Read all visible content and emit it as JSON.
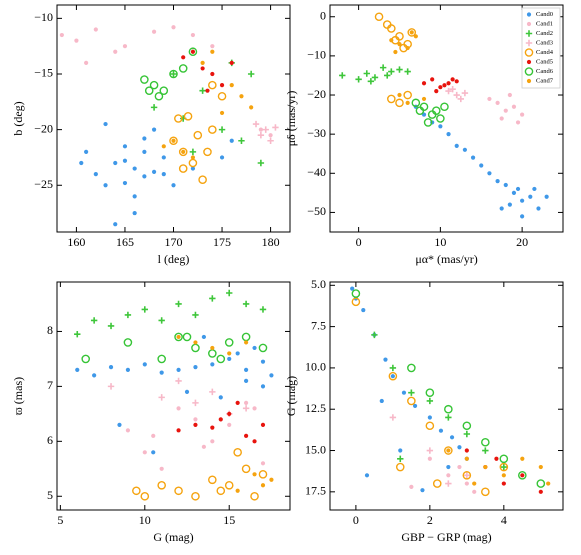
{
  "chart_data": [
    {
      "type": "scatter",
      "xlabel": "l (deg)",
      "ylabel": "b (deg)",
      "xlim": [
        158,
        182
      ],
      "xticks": [
        160,
        165,
        170,
        175,
        180
      ],
      "ylim": [
        -29.2,
        -8.8
      ],
      "yticks": [
        {
          "value": -25,
          "label": "−25"
        },
        {
          "value": -20,
          "label": "−20"
        },
        {
          "value": -15,
          "label": "−15"
        },
        {
          "value": -10,
          "label": "−10"
        }
      ],
      "series": [
        {
          "color": "#3f98e8",
          "marker": "dot",
          "x": [
            166,
            165,
            167,
            164,
            168,
            163,
            169,
            166,
            165,
            167,
            162,
            170,
            161,
            172,
            166,
            164,
            168,
            175,
            176,
            163,
            160.5,
            167,
            165,
            169
          ],
          "y": [
            -23.5,
            -22.8,
            -24.2,
            -23,
            -23.8,
            -25,
            -22.5,
            -26,
            -21.5,
            -20.8,
            -24,
            -25,
            -22,
            -23.5,
            -27.5,
            -28.5,
            -20,
            -22.5,
            -21,
            -19.5,
            -23,
            -22,
            -24.8,
            -24
          ]
        },
        {
          "color": "#f7b8c8",
          "marker": "dot",
          "x": [
            158.5,
            160,
            162,
            165,
            168,
            170,
            172,
            161,
            164,
            174,
            179,
            180
          ],
          "y": [
            -11.5,
            -12,
            -11,
            -12.5,
            -11.2,
            -10.8,
            -11.5,
            -14,
            -13,
            -12.5,
            -20,
            -20.5
          ]
        },
        {
          "color": "#3ec63a",
          "marker": "plus",
          "x": [
            168,
            170,
            173,
            176,
            178,
            175,
            172,
            171,
            177,
            179
          ],
          "y": [
            -18,
            -15,
            -16.5,
            -14,
            -15,
            -20,
            -22,
            -19,
            -21,
            -23
          ]
        },
        {
          "color": "#f7b8c8",
          "marker": "plus",
          "x": [
            178.5,
            179.5,
            180,
            179,
            180.5
          ],
          "y": [
            -19.5,
            -20,
            -21,
            -20.5,
            -19.8
          ]
        },
        {
          "color": "#f5a30f",
          "marker": "ring",
          "x": [
            170,
            171,
            172,
            173,
            174,
            170.5,
            172.5,
            171.5,
            173.5,
            175,
            174,
            171
          ],
          "y": [
            -21,
            -22,
            -23,
            -24.5,
            -20,
            -19,
            -20.5,
            -18.8,
            -22,
            -17,
            -16,
            -23.5
          ]
        },
        {
          "color": "#e8140e",
          "marker": "dot",
          "x": [
            171,
            172,
            173,
            174,
            175,
            176,
            173.5
          ],
          "y": [
            -13.5,
            -13,
            -14.5,
            -15,
            -16,
            -14,
            -16.5
          ]
        },
        {
          "color": "#36c436",
          "marker": "ring",
          "x": [
            167,
            168,
            169,
            170,
            171,
            168.5,
            172,
            167.5
          ],
          "y": [
            -15.5,
            -16,
            -16.5,
            -15,
            -14.5,
            -17,
            -13,
            -16.5
          ]
        },
        {
          "color": "#f5a30f",
          "marker": "dot",
          "x": [
            170,
            171,
            172,
            174,
            176,
            177,
            173,
            175,
            178,
            169
          ],
          "y": [
            -21,
            -22,
            -22.5,
            -13,
            -16,
            -17,
            -14,
            -18.5,
            -18,
            -21.5
          ]
        }
      ]
    },
    {
      "type": "scatter",
      "xlabel": "μα* (mas/yr)",
      "ylabel": "μδ (mas/yr)",
      "legend": "upper right",
      "xlim": [
        -3.5,
        25
      ],
      "xticks": [
        0,
        10,
        20
      ],
      "ylim": [
        -55,
        3
      ],
      "yticks": [
        {
          "value": -50,
          "label": "−50"
        },
        {
          "value": -40,
          "label": "−40"
        },
        {
          "value": -30,
          "label": "−30"
        },
        {
          "value": -20,
          "label": "−20"
        },
        {
          "value": -10,
          "label": "−10"
        },
        0
      ],
      "series": [
        {
          "name": "Cand0",
          "color": "#3f98e8",
          "marker": "dot",
          "x": [
            19,
            18,
            20,
            21,
            17,
            19.5,
            18.5,
            16,
            15,
            14,
            13,
            12,
            11,
            10,
            9,
            8,
            7,
            22,
            23,
            20,
            17.5,
            21.5
          ],
          "y": [
            -45,
            -43,
            -47,
            -46,
            -42,
            -44,
            -48,
            -40,
            -38,
            -36,
            -34,
            -33,
            -30,
            -28,
            -27,
            -25,
            -23,
            -49,
            -46,
            -51,
            -49,
            -44
          ]
        },
        {
          "name": "Cand1",
          "color": "#f7b8c8",
          "marker": "dot",
          "x": [
            17,
            18,
            19,
            20,
            16,
            18.5,
            19.5,
            17.5
          ],
          "y": [
            -22,
            -24,
            -23,
            -25,
            -21,
            -20,
            -27,
            -26
          ]
        },
        {
          "name": "Cand2",
          "color": "#3ec63a",
          "marker": "plus",
          "x": [
            -2,
            0,
            1,
            2,
            3,
            4,
            5,
            6,
            1.5,
            3.5
          ],
          "y": [
            -15,
            -16,
            -14.5,
            -15.5,
            -13,
            -14,
            -13.5,
            -14,
            -16.5,
            -15
          ]
        },
        {
          "name": "Cand3",
          "color": "#f7b8c8",
          "marker": "plus",
          "x": [
            11,
            12,
            13,
            12.5,
            11.5
          ],
          "y": [
            -19,
            -20,
            -19.5,
            -21,
            -18.5
          ]
        },
        {
          "name": "Cand4",
          "color": "#f5a30f",
          "marker": "ring",
          "x": [
            2.5,
            4,
            5,
            6,
            5.5,
            4.5,
            3.5,
            6.5,
            4,
            5,
            6
          ],
          "y": [
            0,
            -3,
            -5,
            -7,
            -8,
            -6,
            -2,
            -4,
            -21,
            -22,
            -20
          ]
        },
        {
          "name": "Cand5",
          "color": "#e8140e",
          "marker": "dot",
          "x": [
            8,
            9,
            10,
            11,
            12,
            9.5,
            10.5,
            11.5
          ],
          "y": [
            -17,
            -16,
            -18,
            -17,
            -16.5,
            -19,
            -17.5,
            -16
          ]
        },
        {
          "name": "Cand6",
          "color": "#36c436",
          "marker": "ring",
          "x": [
            7,
            8,
            9,
            10,
            9.5,
            8.5,
            7.5,
            10.5
          ],
          "y": [
            -22,
            -23,
            -25,
            -26,
            -24,
            -27,
            -24,
            -23
          ]
        },
        {
          "name": "Cand7",
          "color": "#f5a30f",
          "marker": "dot",
          "x": [
            4,
            5,
            6,
            7,
            8,
            5,
            6,
            4.5,
            6.5
          ],
          "y": [
            -6,
            -7,
            -8,
            -5,
            -21,
            -20,
            -22,
            -9,
            -4
          ]
        }
      ]
    },
    {
      "type": "scatter",
      "xlabel": "G (mag)",
      "ylabel": "ϖ (mas)",
      "xlim": [
        4.8,
        18.6
      ],
      "xticks": [
        5,
        10,
        15
      ],
      "ylim": [
        4.75,
        8.9
      ],
      "yticks": [
        5,
        6,
        7,
        8
      ],
      "series": [
        {
          "color": "#3f98e8",
          "marker": "dot",
          "x": [
            6,
            7,
            8,
            9,
            10,
            11,
            12,
            13,
            14,
            15,
            16,
            17,
            17.5,
            15.5,
            16.5,
            14.5,
            13.5,
            12.5,
            8.5,
            10.5,
            16,
            17
          ],
          "y": [
            7.3,
            7.2,
            7.35,
            7.3,
            7.4,
            7.25,
            7.3,
            7.35,
            7.4,
            7.5,
            7.3,
            7.45,
            7.2,
            7.6,
            7.7,
            6.8,
            7.9,
            6.9,
            6.3,
            5.8,
            7.1,
            7.0
          ]
        },
        {
          "color": "#f7b8c8",
          "marker": "dot",
          "x": [
            9,
            10,
            11,
            12,
            13,
            14,
            15,
            16,
            17,
            10.5,
            13.5,
            16.5
          ],
          "y": [
            6.2,
            5.8,
            5.5,
            6.6,
            6.4,
            6.0,
            6.3,
            6.7,
            5.6,
            6.1,
            5.9,
            6.6
          ]
        },
        {
          "color": "#3ec63a",
          "marker": "plus",
          "x": [
            6,
            7,
            8,
            9,
            10,
            11,
            12,
            13,
            14,
            15,
            16,
            17
          ],
          "y": [
            7.95,
            8.2,
            8.1,
            8.3,
            8.4,
            8.2,
            8.5,
            8.3,
            8.6,
            8.7,
            8.5,
            8.4
          ]
        },
        {
          "color": "#f7b8c8",
          "marker": "plus",
          "x": [
            8,
            11,
            13,
            14,
            15,
            16,
            12
          ],
          "y": [
            7.0,
            6.8,
            6.7,
            6.9,
            6.5,
            6.6,
            7.1
          ]
        },
        {
          "color": "#f5a30f",
          "marker": "ring",
          "x": [
            9.5,
            10,
            11,
            12,
            13,
            14,
            15,
            16,
            17,
            16.5,
            15.5,
            14.5
          ],
          "y": [
            5.1,
            5.0,
            5.2,
            5.1,
            5.0,
            5.3,
            5.2,
            5.5,
            5.4,
            5.0,
            5.8,
            5.1
          ]
        },
        {
          "color": "#e8140e",
          "marker": "dot",
          "x": [
            12,
            13,
            14,
            15,
            16,
            17,
            15.5,
            16.5,
            14.5
          ],
          "y": [
            6.2,
            6.3,
            6.25,
            6.5,
            6.1,
            6.3,
            6.7,
            6.0,
            6.4
          ]
        },
        {
          "color": "#36c436",
          "marker": "ring",
          "x": [
            6.5,
            9,
            11,
            12,
            13,
            14,
            15,
            16,
            17,
            14.5,
            12.5
          ],
          "y": [
            7.5,
            7.8,
            7.5,
            7.9,
            7.7,
            7.6,
            7.8,
            7.9,
            7.7,
            7.5,
            7.9
          ]
        },
        {
          "color": "#f5a30f",
          "marker": "dot",
          "x": [
            12,
            13,
            14,
            15,
            16,
            17,
            17.5,
            16.5,
            15.5
          ],
          "y": [
            7.9,
            7.8,
            7.7,
            7.6,
            7.8,
            5.2,
            5.3,
            5.4,
            5.1
          ]
        }
      ]
    },
    {
      "type": "scatter",
      "xlabel": "GBP − GRP (mag)",
      "ylabel": "G (mag)",
      "xlim": [
        -0.7,
        5.6
      ],
      "xticks": [
        0,
        2,
        4
      ],
      "ylim": [
        18.6,
        4.8
      ],
      "yticks": [
        {
          "value": 5,
          "label": "5.0"
        },
        {
          "value": 7.5,
          "label": "7.5"
        },
        {
          "value": 10,
          "label": "10.0"
        },
        {
          "value": 12.5,
          "label": "12.5"
        },
        {
          "value": 15,
          "label": "15.0"
        },
        {
          "value": 17.5,
          "label": "17.5"
        }
      ],
      "series": [
        {
          "color": "#3f98e8",
          "marker": "dot",
          "x": [
            -0.1,
            0,
            0.2,
            0.5,
            0.8,
            1,
            1.3,
            1.6,
            2,
            2.3,
            2.6,
            2.8,
            3,
            1.2,
            0.7,
            2.5,
            1.8,
            0.3
          ],
          "y": [
            5.2,
            5.8,
            6.5,
            8,
            9.5,
            10.5,
            11.5,
            12.3,
            13,
            13.8,
            14.2,
            14.8,
            15.5,
            15,
            12,
            16,
            17.4,
            16.5
          ]
        },
        {
          "color": "#f7b8c8",
          "marker": "dot",
          "x": [
            2,
            2.5,
            3,
            3.2,
            1.5,
            2.8
          ],
          "y": [
            15.5,
            16.5,
            17,
            17.5,
            17.2,
            16
          ]
        },
        {
          "color": "#3ec63a",
          "marker": "plus",
          "x": [
            0.5,
            1,
            1.5,
            2,
            2.5,
            3,
            3.5,
            4,
            1.2
          ],
          "y": [
            8,
            10,
            11.5,
            12,
            13,
            14,
            15,
            16,
            15.5
          ]
        },
        {
          "color": "#f7b8c8",
          "marker": "plus",
          "x": [
            1,
            2,
            3,
            2.5
          ],
          "y": [
            13,
            15,
            16.5,
            17
          ]
        },
        {
          "color": "#f5a30f",
          "marker": "ring",
          "x": [
            0,
            1,
            1.5,
            2,
            2.5,
            3,
            3.5,
            4,
            1.2,
            2.2
          ],
          "y": [
            6,
            10.5,
            12,
            13.5,
            15,
            16.5,
            17.5,
            16,
            16,
            17
          ]
        },
        {
          "color": "#e8140e",
          "marker": "dot",
          "x": [
            3,
            3.5,
            4,
            4.5,
            5,
            3.8
          ],
          "y": [
            15,
            16,
            17,
            16.5,
            17.5,
            15.5
          ]
        },
        {
          "color": "#36c436",
          "marker": "ring",
          "x": [
            0,
            1.5,
            2,
            2.5,
            3,
            3.5,
            4,
            4.5,
            5
          ],
          "y": [
            5.5,
            10,
            11.5,
            12.5,
            13.5,
            14.5,
            15.5,
            16.5,
            17
          ]
        },
        {
          "color": "#f5a30f",
          "marker": "dot",
          "x": [
            2.5,
            3,
            3.5,
            4,
            4.5,
            5,
            5.2,
            3.2
          ],
          "y": [
            15,
            15.5,
            16,
            16.5,
            15.5,
            16,
            17,
            17
          ]
        }
      ]
    }
  ]
}
